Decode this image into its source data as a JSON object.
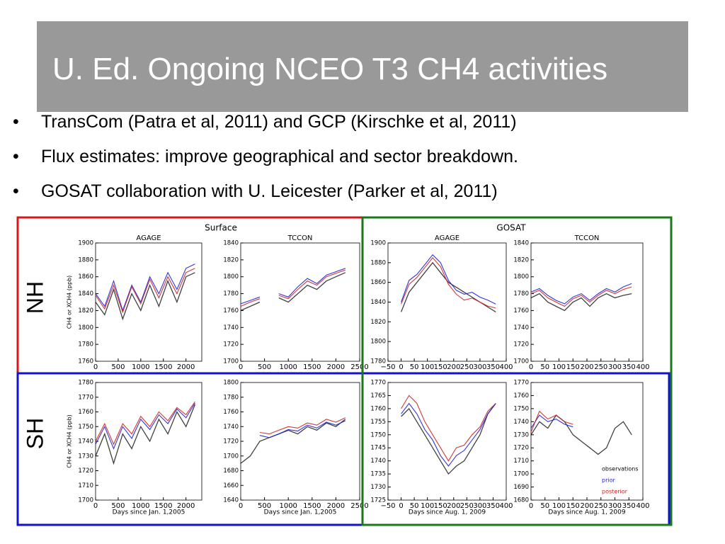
{
  "slide": {
    "title": "U. Ed. Ongoing NCEO T3 CH4 activities",
    "bullets": [
      "TransCom (Patra et al, 2011) and GCP (Kirschke et al, 2011)",
      "Flux estimates: improve geographical and sector breakdown.",
      "GOSAT collaboration with U. Leicester (Parker et al, 2011)"
    ]
  },
  "groups": {
    "surface": "Surface",
    "gosat": "GOSAT",
    "nh": "NH",
    "sh": "SH"
  },
  "chart_data": [
    {
      "type": "line",
      "title": "AGAGE",
      "ylabel": "CH4 or XCH4 (ppb)",
      "x": [
        0,
        200,
        400,
        600,
        800,
        1000,
        1200,
        1400,
        1600,
        1800,
        2000,
        2200
      ],
      "series": [
        {
          "color": "#000000",
          "values": [
            1830,
            1815,
            1845,
            1810,
            1840,
            1820,
            1850,
            1825,
            1855,
            1830,
            1860,
            1865
          ]
        },
        {
          "color": "#1f1fd6",
          "values": [
            1840,
            1825,
            1855,
            1820,
            1850,
            1830,
            1860,
            1840,
            1865,
            1845,
            1870,
            1875
          ]
        },
        {
          "color": "#cc2222",
          "values": [
            1838,
            1822,
            1850,
            1818,
            1848,
            1828,
            1857,
            1835,
            1860,
            1840,
            1865,
            1870
          ]
        }
      ],
      "xlim": [
        0,
        2350
      ],
      "xticks": [
        0,
        500,
        1000,
        1500,
        2000
      ],
      "ylim": [
        1760,
        1900
      ],
      "yticks": [
        1760,
        1780,
        1800,
        1820,
        1840,
        1860,
        1880,
        1900
      ]
    },
    {
      "type": "line",
      "title": "TCCON",
      "x": [
        0,
        200,
        400,
        600,
        800,
        1000,
        1200,
        1400,
        1600,
        1800,
        2000,
        2200
      ],
      "series": [
        {
          "color": "#000000",
          "values": [
            1760,
            1765,
            1770,
            null,
            1775,
            1770,
            1780,
            1790,
            1785,
            1795,
            1800,
            1805
          ]
        },
        {
          "color": "#1f1fd6",
          "values": [
            1768,
            1772,
            1776,
            null,
            1780,
            1776,
            1788,
            1798,
            1792,
            1802,
            1806,
            1810
          ]
        },
        {
          "color": "#cc2222",
          "values": [
            1765,
            1770,
            1774,
            null,
            1778,
            1774,
            1785,
            1795,
            1790,
            1800,
            1804,
            1808
          ]
        }
      ],
      "xlim": [
        0,
        2500
      ],
      "xticks": [
        0,
        500,
        1000,
        1500,
        2000,
        2500
      ],
      "ylim": [
        1700,
        1840
      ],
      "yticks": [
        1700,
        1720,
        1740,
        1760,
        1780,
        1800,
        1820,
        1840
      ]
    },
    {
      "type": "line",
      "title": "AGAGE",
      "x": [
        0,
        30,
        60,
        90,
        120,
        150,
        180,
        210,
        240,
        270,
        300,
        330,
        360
      ],
      "series": [
        {
          "color": "#000000",
          "values": [
            1830,
            1850,
            1860,
            1870,
            1880,
            1870,
            1860,
            1855,
            1850,
            1845,
            1840,
            1835,
            1830
          ]
        },
        {
          "color": "#1f1fd6",
          "values": [
            1840,
            1862,
            1868,
            1878,
            1888,
            1880,
            1862,
            1852,
            1848,
            1850,
            1845,
            1842,
            1838
          ]
        },
        {
          "color": "#cc2222",
          "values": [
            1838,
            1858,
            1865,
            1875,
            1885,
            1876,
            1858,
            1848,
            1842,
            1844,
            1840,
            1836,
            1834
          ]
        }
      ],
      "xlim": [
        -50,
        400
      ],
      "xticks": [
        {
          "value": -50,
          "label": "−50"
        },
        0,
        50,
        100,
        150,
        200,
        250,
        300,
        350,
        400
      ],
      "ylim": [
        1780,
        1900
      ],
      "yticks": [
        1780,
        1800,
        1820,
        1840,
        1860,
        1880,
        1900
      ]
    },
    {
      "type": "line",
      "title": "TCCON",
      "x": [
        0,
        30,
        60,
        90,
        120,
        150,
        180,
        210,
        240,
        270,
        300,
        330,
        360
      ],
      "series": [
        {
          "color": "#000000",
          "values": [
            1775,
            1780,
            1770,
            1765,
            1760,
            1770,
            1775,
            1765,
            1775,
            1780,
            1775,
            1778,
            1780
          ]
        },
        {
          "color": "#1f1fd6",
          "values": [
            1782,
            1786,
            1778,
            1772,
            1768,
            1776,
            1780,
            1772,
            1780,
            1786,
            1782,
            1788,
            1792
          ]
        },
        {
          "color": "#cc2222",
          "values": [
            1780,
            1784,
            1775,
            1770,
            1765,
            1774,
            1778,
            1770,
            1778,
            1784,
            1780,
            1785,
            1788
          ]
        }
      ],
      "xlim": [
        0,
        400
      ],
      "xticks": [
        0,
        50,
        100,
        150,
        200,
        250,
        300,
        350,
        400
      ],
      "ylim": [
        1700,
        1840
      ],
      "yticks": [
        1700,
        1720,
        1740,
        1760,
        1780,
        1800,
        1820,
        1840
      ]
    },
    {
      "type": "line",
      "ylabel": "CH4 or XCH4 (ppb)",
      "xlabel": "Days since Jan. 1,2005",
      "x": [
        0,
        200,
        400,
        600,
        800,
        1000,
        1200,
        1400,
        1600,
        1800,
        2000,
        2200
      ],
      "series": [
        {
          "color": "#000000",
          "values": [
            1730,
            1745,
            1725,
            1745,
            1735,
            1750,
            1740,
            1755,
            1745,
            1760,
            1750,
            1765
          ]
        },
        {
          "color": "#1f1fd6",
          "values": [
            1738,
            1750,
            1735,
            1750,
            1742,
            1755,
            1748,
            1758,
            1752,
            1762,
            1756,
            1766
          ]
        },
        {
          "color": "#cc2222",
          "values": [
            1740,
            1752,
            1738,
            1752,
            1745,
            1757,
            1750,
            1760,
            1754,
            1763,
            1758,
            1767
          ]
        }
      ],
      "xlim": [
        0,
        2350
      ],
      "xticks": [
        0,
        500,
        1000,
        1500,
        2000
      ],
      "ylim": [
        1700,
        1780
      ],
      "yticks": [
        1700,
        1710,
        1720,
        1730,
        1740,
        1750,
        1760,
        1770,
        1780
      ]
    },
    {
      "type": "line",
      "xlabel": "Days since Jan. 1,2005",
      "x": [
        0,
        200,
        400,
        600,
        800,
        1000,
        1200,
        1400,
        1600,
        1800,
        2000,
        2200
      ],
      "series": [
        {
          "color": "#000000",
          "values": [
            1690,
            1700,
            1720,
            1725,
            1730,
            1735,
            1730,
            1740,
            1735,
            1745,
            1740,
            1750
          ]
        },
        {
          "color": "#1f1fd6",
          "values": [
            null,
            null,
            1728,
            1725,
            1730,
            1736,
            1734,
            1742,
            1738,
            1746,
            1742,
            1748
          ]
        },
        {
          "color": "#cc2222",
          "values": [
            null,
            null,
            1732,
            1730,
            1735,
            1740,
            1738,
            1745,
            1742,
            1750,
            1746,
            1752
          ]
        }
      ],
      "xlim": [
        0,
        2500
      ],
      "xticks": [
        0,
        500,
        1000,
        1500,
        2000,
        2500
      ],
      "ylim": [
        1640,
        1800
      ],
      "yticks": [
        1640,
        1660,
        1680,
        1700,
        1720,
        1740,
        1760,
        1780,
        1800
      ]
    },
    {
      "type": "line",
      "xlabel": "Days since Aug. 1, 2009",
      "x": [
        0,
        30,
        60,
        90,
        120,
        150,
        180,
        210,
        240,
        270,
        300,
        330,
        360
      ],
      "series": [
        {
          "color": "#000000",
          "values": [
            1757,
            1760,
            1755,
            1750,
            1745,
            1740,
            1735,
            1738,
            1740,
            1745,
            1750,
            1758,
            1762
          ]
        },
        {
          "color": "#1f1fd6",
          "values": [
            1758,
            1762,
            1758,
            1752,
            1748,
            1742,
            1738,
            1742,
            1744,
            1748,
            1752,
            1758,
            1762
          ]
        },
        {
          "color": "#cc2222",
          "values": [
            1760,
            1765,
            1762,
            1755,
            1750,
            1745,
            1740,
            1745,
            1746,
            1750,
            1753,
            1759,
            1762
          ]
        }
      ],
      "xlim": [
        -50,
        400
      ],
      "xticks": [
        {
          "value": -50,
          "label": "−50"
        },
        0,
        50,
        100,
        150,
        200,
        250,
        300,
        350,
        400
      ],
      "ylim": [
        1725,
        1770
      ],
      "yticks": [
        1725,
        1730,
        1735,
        1740,
        1745,
        1750,
        1755,
        1760,
        1765,
        1770
      ]
    },
    {
      "type": "line",
      "xlabel": "Days since Aug. 1, 2009",
      "legend": "lower right",
      "x": [
        0,
        30,
        60,
        90,
        120,
        150,
        180,
        210,
        240,
        270,
        300,
        330,
        360
      ],
      "series": [
        {
          "name": "observations",
          "color": "#000000",
          "values": [
            1730,
            1740,
            1735,
            1745,
            1740,
            1730,
            1725,
            1720,
            1715,
            1720,
            1735,
            1740,
            1730
          ]
        },
        {
          "name": "prior",
          "color": "#1f1fd6",
          "values": [
            1735,
            1745,
            1740,
            1742,
            1738,
            1736,
            null,
            null,
            null,
            null,
            null,
            null,
            null
          ]
        },
        {
          "name": "posterior",
          "color": "#cc2222",
          "values": [
            1732,
            1748,
            1742,
            1745,
            1740,
            1738,
            null,
            null,
            null,
            null,
            null,
            null,
            null
          ]
        }
      ],
      "xlim": [
        0,
        400
      ],
      "xticks": [
        0,
        50,
        100,
        150,
        200,
        250,
        300,
        350,
        400
      ],
      "ylim": [
        1680,
        1770
      ],
      "yticks": [
        1680,
        1690,
        1700,
        1710,
        1720,
        1730,
        1740,
        1750,
        1760,
        1770
      ]
    }
  ]
}
